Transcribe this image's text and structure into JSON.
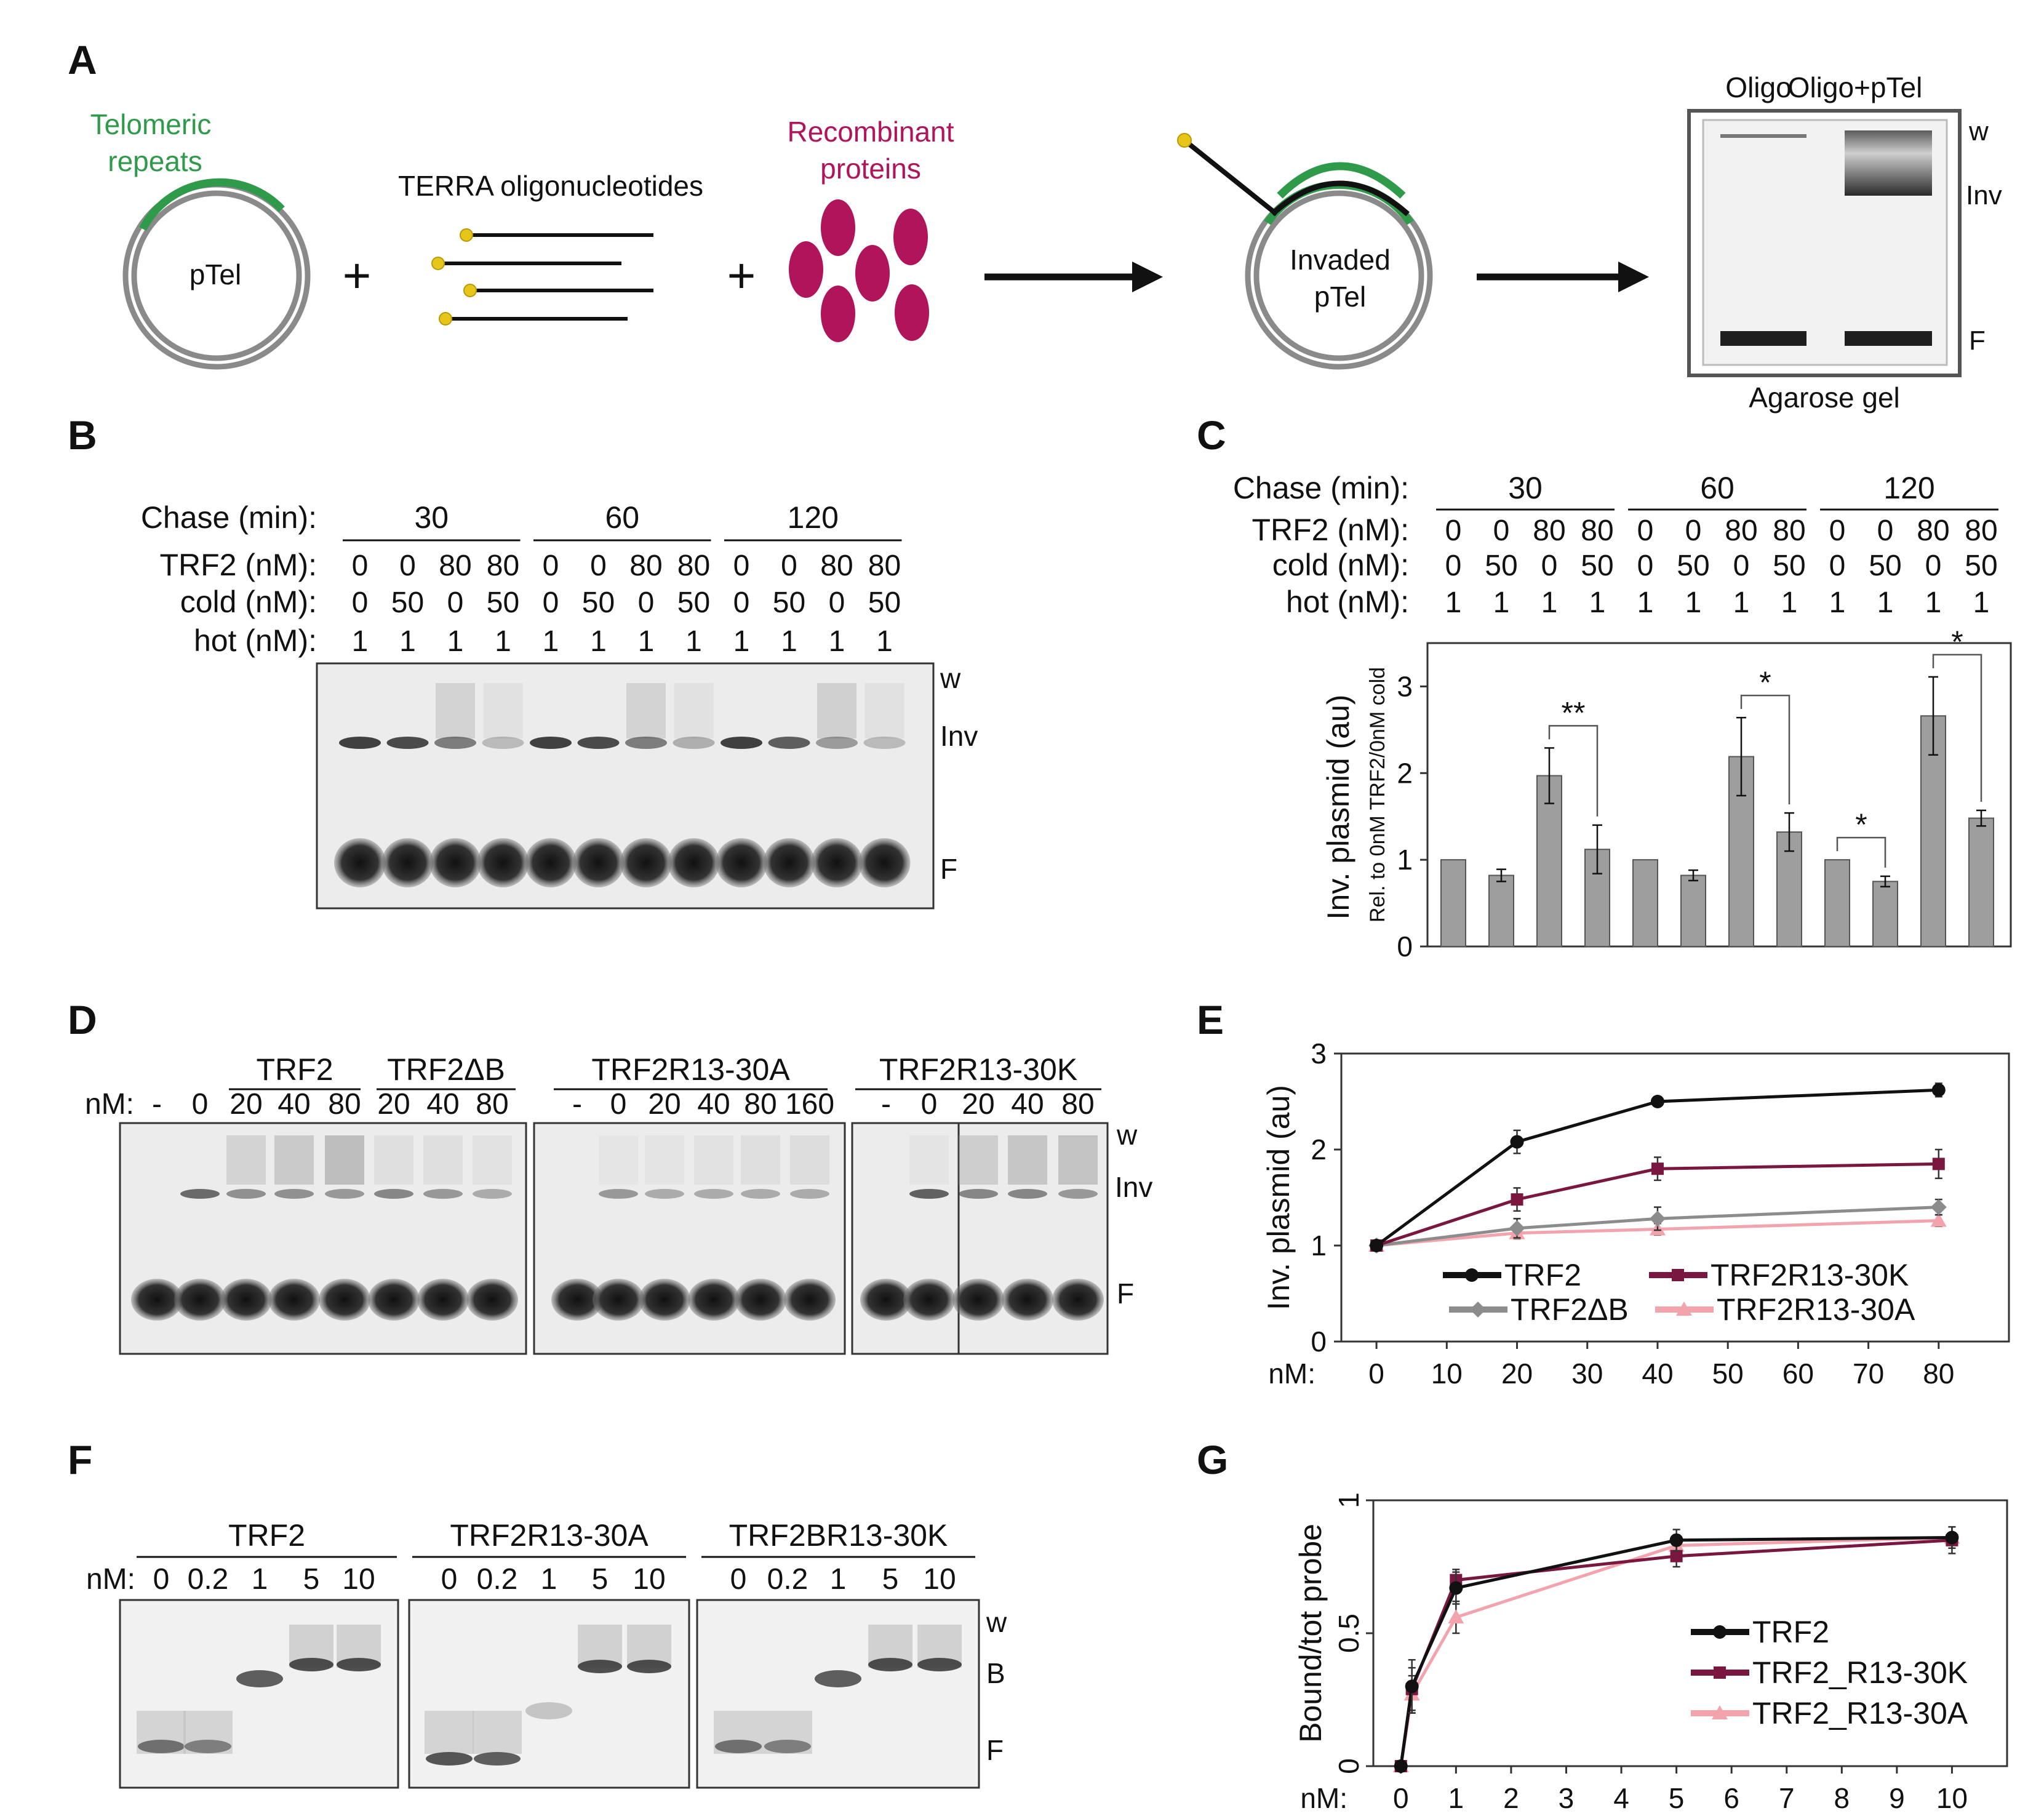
{
  "panel_letters": {
    "a": "A",
    "b": "B",
    "c": "C",
    "d": "D",
    "e": "E",
    "f": "F",
    "g": "G"
  },
  "colors": {
    "green": "#2e9a4a",
    "magenta": "#b0145a",
    "yellow": "#e6c619",
    "grey_bar": "#9e9e9e",
    "black": "#111111"
  },
  "panel_a": {
    "telomeric_1": "Telomeric",
    "telomeric_2": "repeats",
    "ptel": "pTel",
    "terra": "TERRA oligonucleotides",
    "recomb_1": "Recombinant",
    "recomb_2": "proteins",
    "invaded_1": "Invaded",
    "invaded_2": "pTel",
    "plus": "+",
    "gel_oligo": "Oligo",
    "gel_oligo_ptel": "Oligo+pTel",
    "gel_w": "w",
    "gel_inv": "Inv",
    "gel_f": "F",
    "gel_caption": "Agarose gel"
  },
  "panel_b": {
    "row_labels": [
      "Chase (min):",
      "TRF2 (nM):",
      "cold (nM):",
      "hot (nM):"
    ],
    "chase_groups": [
      "30",
      "60",
      "120"
    ],
    "trf2": [
      "0",
      "0",
      "80",
      "80",
      "0",
      "0",
      "80",
      "80",
      "0",
      "0",
      "80",
      "80"
    ],
    "cold": [
      "0",
      "50",
      "0",
      "50",
      "0",
      "50",
      "0",
      "50",
      "0",
      "50",
      "0",
      "50"
    ],
    "hot": [
      "1",
      "1",
      "1",
      "1",
      "1",
      "1",
      "1",
      "1",
      "1",
      "1",
      "1",
      "1"
    ],
    "band_labels": [
      "w",
      "Inv",
      "F"
    ]
  },
  "panel_c": {
    "row_labels": [
      "Chase (min):",
      "TRF2 (nM):",
      "cold (nM):",
      "hot (nM):"
    ],
    "chase_groups": [
      "30",
      "60",
      "120"
    ],
    "trf2": [
      "0",
      "0",
      "80",
      "80",
      "0",
      "0",
      "80",
      "80",
      "0",
      "0",
      "80",
      "80"
    ],
    "cold": [
      "0",
      "50",
      "0",
      "50",
      "0",
      "50",
      "0",
      "50",
      "0",
      "50",
      "0",
      "50"
    ],
    "hot": [
      "1",
      "1",
      "1",
      "1",
      "1",
      "1",
      "1",
      "1",
      "1",
      "1",
      "1",
      "1"
    ],
    "significance": [
      "**",
      "*",
      "*",
      "*"
    ]
  },
  "panel_d": {
    "nm_label": "nM:",
    "groups": [
      "TRF2",
      "TRF2ΔB",
      "TRF2R13-30A",
      "TRF2R13-30K"
    ],
    "lanes_1": [
      "-",
      "0",
      "20",
      "40",
      "80",
      "20",
      "40",
      "80"
    ],
    "lanes_2": [
      "-",
      "0",
      "20",
      "40",
      "80",
      "160"
    ],
    "lanes_3": [
      "-",
      "0",
      "20",
      "40",
      "80"
    ],
    "band_labels": [
      "w",
      "Inv",
      "F"
    ]
  },
  "panel_f": {
    "nm_label": "nM:",
    "groups": [
      "TRF2",
      "TRF2R13-30A",
      "TRF2BR13-30K"
    ],
    "lanes": [
      "0",
      "0.2",
      "1",
      "5",
      "10"
    ],
    "band_labels": [
      "w",
      "B",
      "F"
    ]
  },
  "chart_data": [
    {
      "id": "C",
      "type": "bar",
      "ylabel": "Inv. plasmid (au)",
      "ylabel2": "Rel. to 0nM TRF2/0nM cold",
      "ylim": [
        0,
        3.5
      ],
      "yticks": [
        0,
        1,
        2,
        3
      ],
      "values": [
        1.0,
        0.82,
        1.97,
        1.12,
        1.0,
        0.82,
        2.19,
        1.32,
        1.0,
        0.75,
        2.66,
        1.48
      ],
      "errors": [
        0,
        0.07,
        0.32,
        0.28,
        0,
        0.06,
        0.45,
        0.22,
        0,
        0.06,
        0.45,
        0.09
      ]
    },
    {
      "id": "E",
      "type": "line",
      "xlabel": "nM:",
      "ylabel": "Inv. plasmid (au)",
      "xlim": [
        -5,
        90
      ],
      "ylim": [
        0,
        3
      ],
      "xticks": [
        0,
        10,
        20,
        30,
        40,
        50,
        60,
        70,
        80
      ],
      "yticks": [
        0,
        1,
        2,
        3
      ],
      "x": [
        0,
        20,
        40,
        80
      ],
      "series": [
        {
          "name": "TRF2",
          "color": "#111111",
          "marker": "circle",
          "values": [
            1.0,
            2.08,
            2.5,
            2.62
          ],
          "errors": [
            0,
            0.12,
            0.03,
            0.07
          ]
        },
        {
          "name": "TRF2R13-30K",
          "color": "#7a1740",
          "marker": "square",
          "values": [
            1.0,
            1.48,
            1.8,
            1.85
          ],
          "errors": [
            0,
            0.12,
            0.12,
            0.15
          ]
        },
        {
          "name": "TRF2ΔB",
          "color": "#8c8c8c",
          "marker": "diamond",
          "values": [
            1.0,
            1.18,
            1.28,
            1.4
          ],
          "errors": [
            0,
            0.1,
            0.12,
            0.08
          ]
        },
        {
          "name": "TRF2R13-30A",
          "color": "#f2a3ac",
          "marker": "triangle",
          "values": [
            1.0,
            1.13,
            1.17,
            1.26
          ],
          "errors": [
            0,
            0.06,
            0.06,
            0.06
          ]
        }
      ]
    },
    {
      "id": "G",
      "type": "line",
      "xlabel": "nM:",
      "ylabel": "Bound/tot probe",
      "xlim": [
        -0.5,
        11
      ],
      "ylim": [
        0,
        1
      ],
      "xticks": [
        0,
        1,
        2,
        3,
        4,
        5,
        6,
        7,
        8,
        9,
        10
      ],
      "ytick_labels": [
        "0",
        "0.5",
        "1"
      ],
      "x": [
        0,
        0.2,
        1,
        5,
        10
      ],
      "series": [
        {
          "name": "TRF2",
          "color": "#111111",
          "marker": "circle",
          "values": [
            0.0,
            0.3,
            0.67,
            0.85,
            0.86
          ],
          "errors": [
            0,
            0.1,
            0.06,
            0.04,
            0.04
          ]
        },
        {
          "name": "TRF2_R13-30K",
          "color": "#7a1740",
          "marker": "square",
          "values": [
            0.0,
            0.29,
            0.7,
            0.79,
            0.85
          ],
          "errors": [
            0,
            0.08,
            0.04,
            0.04,
            0.05
          ]
        },
        {
          "name": "TRF2_R13-30A",
          "color": "#f2a3ac",
          "marker": "triangle",
          "values": [
            0.0,
            0.27,
            0.56,
            0.83,
            0.86
          ],
          "errors": [
            0,
            0.07,
            0.06,
            0.04,
            0.04
          ]
        }
      ]
    }
  ]
}
